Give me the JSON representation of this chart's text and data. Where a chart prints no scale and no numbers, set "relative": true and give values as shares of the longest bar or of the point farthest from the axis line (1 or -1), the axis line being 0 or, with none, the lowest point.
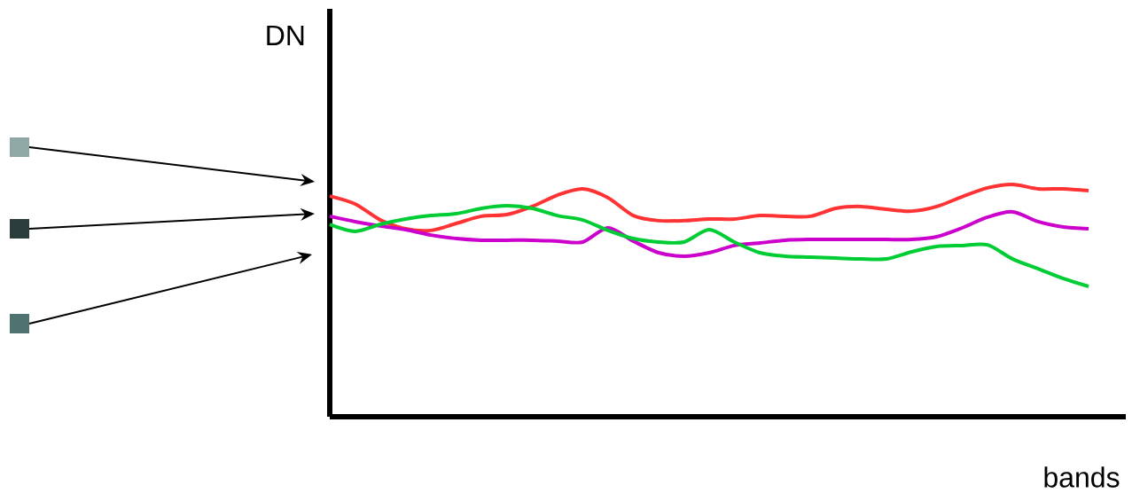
{
  "chart_data": {
    "type": "line",
    "relative": true,
    "xlabel": "bands",
    "ylabel": "DN",
    "categories": [
      null,
      null,
      null,
      null,
      null,
      null,
      null,
      null,
      null,
      null,
      null,
      null,
      null,
      null,
      null,
      null,
      null,
      null,
      null,
      null,
      null,
      null,
      null,
      null,
      null,
      null,
      null,
      null,
      null,
      null,
      null
    ],
    "series": [
      {
        "color": "#ff3333",
        "values": [
          0.95,
          0.916,
          0.847,
          0.809,
          0.802,
          0.832,
          0.863,
          0.87,
          0.905,
          0.954,
          0.981,
          0.943,
          0.866,
          0.844,
          0.844,
          0.851,
          0.851,
          0.866,
          0.863,
          0.863,
          0.897,
          0.905,
          0.893,
          0.885,
          0.905,
          0.947,
          0.985,
          1.0,
          0.981,
          0.981,
          0.973
        ]
      },
      {
        "color": "#cc00cc",
        "values": [
          0.863,
          0.84,
          0.821,
          0.805,
          0.782,
          0.767,
          0.76,
          0.76,
          0.76,
          0.756,
          0.752,
          0.813,
          0.756,
          0.706,
          0.691,
          0.706,
          0.737,
          0.748,
          0.76,
          0.763,
          0.763,
          0.763,
          0.763,
          0.763,
          0.775,
          0.813,
          0.859,
          0.882,
          0.84,
          0.817,
          0.809
        ]
      },
      {
        "color": "#00cc33",
        "values": [
          0.828,
          0.798,
          0.828,
          0.851,
          0.866,
          0.874,
          0.897,
          0.908,
          0.897,
          0.866,
          0.847,
          0.802,
          0.767,
          0.752,
          0.752,
          0.805,
          0.752,
          0.706,
          0.691,
          0.687,
          0.683,
          0.679,
          0.679,
          0.71,
          0.733,
          0.737,
          0.74,
          0.679,
          0.637,
          0.595,
          0.561
        ]
      }
    ]
  }
}
